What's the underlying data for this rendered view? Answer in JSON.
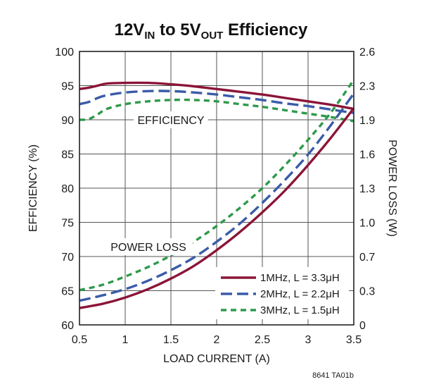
{
  "chart_data": {
    "type": "line",
    "title": {
      "parts": [
        {
          "text": "12V",
          "sub": false
        },
        {
          "text": "IN",
          "sub": true
        },
        {
          "text": " to 5V",
          "sub": false
        },
        {
          "text": "OUT",
          "sub": true
        },
        {
          "text": " Efficiency",
          "sub": false
        }
      ]
    },
    "xlabel": "LOAD CURRENT (A)",
    "ylabel_left": "EFFICIENCY (%)",
    "ylabel_right": "POWER LOSS (W)",
    "xlim": [
      0.5,
      3.5
    ],
    "ylim_left": [
      60,
      100
    ],
    "ylim_right": [
      0,
      2.6
    ],
    "x_ticks": [
      "0.5",
      "1",
      "1.5",
      "2",
      "2.5",
      "3",
      "3.5"
    ],
    "x_tick_values": [
      0.5,
      1,
      1.5,
      2,
      2.5,
      3,
      3.5
    ],
    "y_left_ticks": [
      "60",
      "65",
      "70",
      "75",
      "80",
      "85",
      "90",
      "95",
      "100"
    ],
    "y_left_tick_values": [
      60,
      65,
      70,
      75,
      80,
      85,
      90,
      95,
      100
    ],
    "y_right_ticks": [
      "0",
      "0.3",
      "0.7",
      "1.0",
      "1.3",
      "1.6",
      "1.9",
      "2.3",
      "2.6"
    ],
    "grid": true,
    "annotations": [
      "EFFICIENCY",
      "POWER LOSS"
    ],
    "legend_placement": "bottom-right",
    "series": [
      {
        "name": "1MHz, L = 3.3μH",
        "color": "#8b1538",
        "dash": "solid",
        "axis": "left",
        "group": "efficiency",
        "x": [
          0.5,
          0.6,
          0.7,
          0.8,
          1.0,
          1.25,
          1.5,
          1.75,
          2.0,
          2.25,
          2.5,
          2.75,
          3.0,
          3.25,
          3.5
        ],
        "y": [
          94.5,
          94.7,
          95.0,
          95.3,
          95.4,
          95.4,
          95.2,
          94.9,
          94.5,
          94.1,
          93.7,
          93.2,
          92.7,
          92.2,
          91.6
        ]
      },
      {
        "name": "2MHz, L = 2.2μH",
        "color": "#3a5ca8",
        "dash": "long",
        "axis": "left",
        "group": "efficiency",
        "x": [
          0.5,
          0.6,
          0.7,
          0.8,
          1.0,
          1.25,
          1.5,
          1.75,
          2.0,
          2.25,
          2.5,
          2.75,
          3.0,
          3.25,
          3.5
        ],
        "y": [
          92.3,
          92.6,
          93.2,
          93.6,
          94.0,
          94.2,
          94.2,
          94.0,
          93.7,
          93.3,
          92.9,
          92.4,
          92.0,
          91.5,
          91.0
        ]
      },
      {
        "name": "3MHz, L = 1.5μH",
        "color": "#2e9a4a",
        "dash": "short",
        "axis": "left",
        "group": "efficiency",
        "x": [
          0.5,
          0.6,
          0.7,
          0.8,
          1.0,
          1.25,
          1.5,
          1.75,
          2.0,
          2.25,
          2.5,
          2.75,
          3.0,
          3.25,
          3.5
        ],
        "y": [
          90.0,
          90.1,
          90.8,
          91.6,
          92.3,
          92.7,
          92.9,
          92.9,
          92.7,
          92.3,
          91.9,
          91.4,
          90.9,
          90.4,
          89.8
        ]
      },
      {
        "name": "1MHz, L = 3.3μH",
        "color": "#8b1538",
        "dash": "solid",
        "axis": "right",
        "group": "power_loss",
        "x": [
          0.5,
          0.75,
          1.0,
          1.25,
          1.5,
          1.75,
          2.0,
          2.25,
          2.5,
          2.75,
          3.0,
          3.25,
          3.5
        ],
        "y": [
          0.16,
          0.2,
          0.26,
          0.34,
          0.44,
          0.56,
          0.71,
          0.88,
          1.07,
          1.28,
          1.52,
          1.78,
          2.06
        ]
      },
      {
        "name": "2MHz, L = 2.2μH",
        "color": "#3a5ca8",
        "dash": "long",
        "axis": "right",
        "group": "power_loss",
        "x": [
          0.5,
          0.75,
          1.0,
          1.25,
          1.5,
          1.75,
          2.0,
          2.25,
          2.5,
          2.75,
          3.0,
          3.25,
          3.5
        ],
        "y": [
          0.23,
          0.28,
          0.34,
          0.42,
          0.52,
          0.64,
          0.79,
          0.96,
          1.16,
          1.38,
          1.62,
          1.9,
          2.2
        ]
      },
      {
        "name": "3MHz, L = 1.5μH",
        "color": "#2e9a4a",
        "dash": "short",
        "axis": "right",
        "group": "power_loss",
        "x": [
          0.5,
          0.75,
          1.0,
          1.25,
          1.5,
          1.75,
          2.0,
          2.25,
          2.5,
          2.75,
          3.0,
          3.25,
          3.5
        ],
        "y": [
          0.33,
          0.38,
          0.46,
          0.55,
          0.66,
          0.79,
          0.94,
          1.11,
          1.3,
          1.52,
          1.76,
          2.02,
          2.33
        ]
      }
    ],
    "legend": [
      {
        "label": "1MHz, L = 3.3μH",
        "color": "#8b1538",
        "dash": "solid"
      },
      {
        "label": "2MHz, L = 2.2μH",
        "color": "#3a5ca8",
        "dash": "long"
      },
      {
        "label": "3MHz, L = 1.5μH",
        "color": "#2e9a4a",
        "dash": "short"
      }
    ]
  },
  "figure_code": "8641 TA01b"
}
